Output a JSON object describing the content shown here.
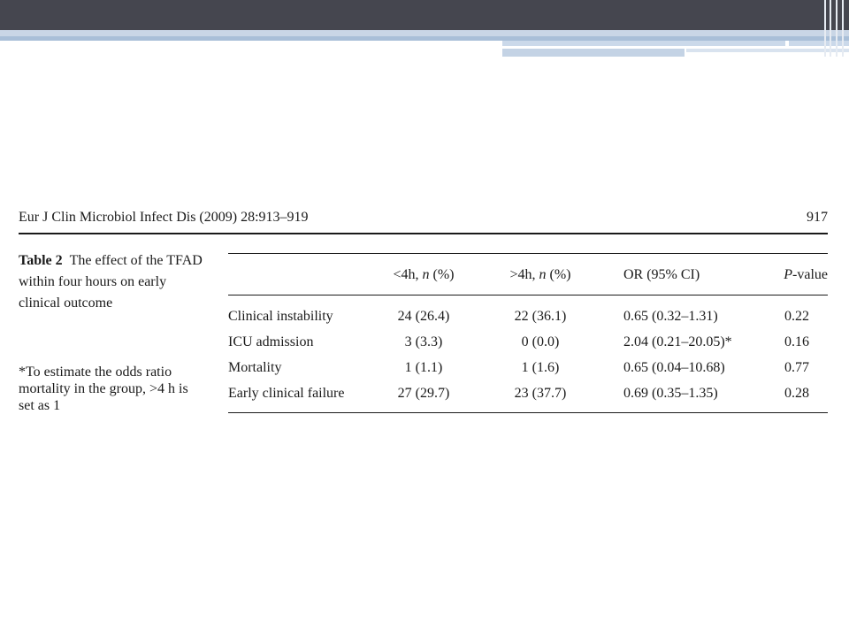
{
  "journal": {
    "citation": "Eur J Clin Microbiol Infect Dis (2009) 28:913–919",
    "page_number": "917"
  },
  "table": {
    "caption_label": "Table 2",
    "caption_text": "The effect of the TFAD within four hours on early clinical outcome",
    "footnote": "*To estimate the odds ratio mortality in the group, >4 h is set as 1",
    "headers": {
      "lt4_prefix": "<4h, ",
      "gt4_prefix": ">4h, ",
      "n_italic": "n",
      "pct_suffix": " (%)",
      "or_ci": "OR (95% CI)",
      "p_italic": "P",
      "p_suffix": "-value"
    },
    "rows": [
      {
        "label": "Clinical instability",
        "lt4": "24 (26.4)",
        "gt4": "22 (36.1)",
        "or": "0.65 (0.32–1.31)",
        "p": "0.22"
      },
      {
        "label": "ICU admission",
        "lt4": "3 (3.3)",
        "gt4": "0 (0.0)",
        "or": "2.04 (0.21–20.05)*",
        "p": "0.16"
      },
      {
        "label": "Mortality",
        "lt4": "1 (1.1)",
        "gt4": "1 (1.6)",
        "or": "0.65 (0.04–10.68)",
        "p": "0.77"
      },
      {
        "label": "Early clinical failure",
        "lt4": "27 (29.7)",
        "gt4": "23 (37.7)",
        "or": "0.69 (0.35–1.35)",
        "p": "0.28"
      }
    ]
  },
  "colors": {
    "header_bar": "#45464f",
    "accent_band": "#a9bfd8",
    "text": "#1a1a1a"
  }
}
